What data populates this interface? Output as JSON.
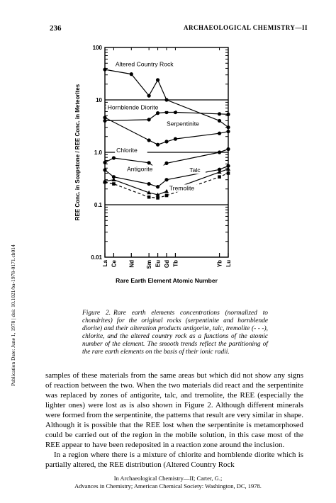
{
  "header": {
    "page_number": "236",
    "running_title": "ARCHAEOLOGICAL CHEMISTRY—II"
  },
  "side_note": "Publication Date: June 1, 1978 | doi: 10.1021/ba-1978-0171.ch014",
  "chart_data": {
    "type": "line",
    "xlabel": "Rare Earth Element Atomic Number",
    "ylabel": "REE Conc. in Soapstone / REE Conc. in Meteorites",
    "yscale": "log",
    "ylim": [
      0.01,
      100
    ],
    "yticks": [
      0.01,
      0.1,
      1.0,
      10,
      100
    ],
    "ytick_labels": [
      "0.01",
      "0.1",
      "1.0",
      "10",
      "100"
    ],
    "x_tick_elements": [
      {
        "label": "La",
        "z": 57
      },
      {
        "label": "Ce",
        "z": 58
      },
      {
        "label": "Nd",
        "z": 60
      },
      {
        "label": "Sm",
        "z": 62
      },
      {
        "label": "Eu",
        "z": 63
      },
      {
        "label": "Gd",
        "z": 64
      },
      {
        "label": "Tb",
        "z": 65
      },
      {
        "label": "Yb",
        "z": 70
      },
      {
        "label": "Lu",
        "z": 71
      }
    ],
    "series": [
      {
        "name": "Altered Country Rock",
        "style": "solid",
        "marker": "circle",
        "x": [
          57,
          60,
          62,
          63,
          64,
          70,
          71
        ],
        "y": [
          38,
          31,
          12,
          24,
          10,
          4,
          3
        ]
      },
      {
        "name": "Hornblende Diorite",
        "style": "solid",
        "marker": "circle",
        "x": [
          57,
          62,
          63,
          64,
          65,
          70,
          71
        ],
        "y": [
          4,
          4.2,
          5.6,
          5.8,
          5.8,
          5.4,
          5.3
        ]
      },
      {
        "name": "Serpentinite",
        "style": "solid",
        "marker": "circle",
        "x": [
          57,
          62,
          63,
          64,
          65,
          70,
          71
        ],
        "y": [
          4.6,
          1.7,
          1.4,
          1.6,
          1.8,
          2.3,
          2.5
        ]
      },
      {
        "name": "Chlorite",
        "style": "solid",
        "marker": "circle",
        "x": [
          57,
          58,
          62,
          63,
          64,
          70,
          71
        ],
        "y": [
          0.64,
          0.78,
          0.63,
          0.47,
          0.62,
          1.0,
          1.15
        ]
      },
      {
        "name": "Antigorite",
        "style": "solid",
        "marker": "circle",
        "x": [
          57,
          58,
          62,
          63,
          64,
          70,
          71
        ],
        "y": [
          0.46,
          0.34,
          0.25,
          0.22,
          0.3,
          0.47,
          0.55
        ]
      },
      {
        "name": "Talc",
        "style": "solid",
        "marker": "triangle",
        "x": [
          57,
          58,
          62,
          63,
          64,
          70,
          71
        ],
        "y": [
          0.28,
          0.3,
          0.17,
          0.155,
          0.18,
          0.42,
          0.48
        ]
      },
      {
        "name": "Tremolite",
        "style": "dashed",
        "marker": "square",
        "x": [
          57,
          58,
          62,
          63,
          64,
          70,
          71
        ],
        "y": [
          0.27,
          0.25,
          0.14,
          0.135,
          0.15,
          0.34,
          0.4
        ]
      }
    ]
  },
  "caption": {
    "label": "Figure 2.",
    "text": "Rare earth elements concentrations (normalized to chondrites) for the original rocks (serpentinite and hornblende diorite) and their alteration products antigorite, talc, tremolite (- - -), chlorite, and the altered country rock as a functions of the atomic number of the element. The smooth trends reflect the partitioning of the rare earth elements on the basis of their ionic radii."
  },
  "body": {
    "paragraph_1": "samples of these materials from the same areas but which did not show any signs of reaction between the two. When the two materials did react and the serpentinite was replaced by zones of antigorite, talc, and tremolite, the REE (especially the lighter ones) were lost as is also shown in Figure 2. Although different minerals were formed from the serpentinite, the patterns that result are very similar in shape. Although it is possible that the REE lost when the serpentinite is metamorphosed could be carried out of the region in the mobile solution, in this case most of the REE appear to have been redeposited in a reaction zone around the inclusion.",
    "paragraph_2": "In a region where there is a mixture of chlorite and hornblende diorite which is partially altered, the REE distribution (Altered Country Rock"
  },
  "footer": {
    "line_1": "In Archaeological Chemistry—II; Carter, G.;",
    "line_2": "Advances in Chemistry; American Chemical Society: Washington, DC, 1978."
  }
}
